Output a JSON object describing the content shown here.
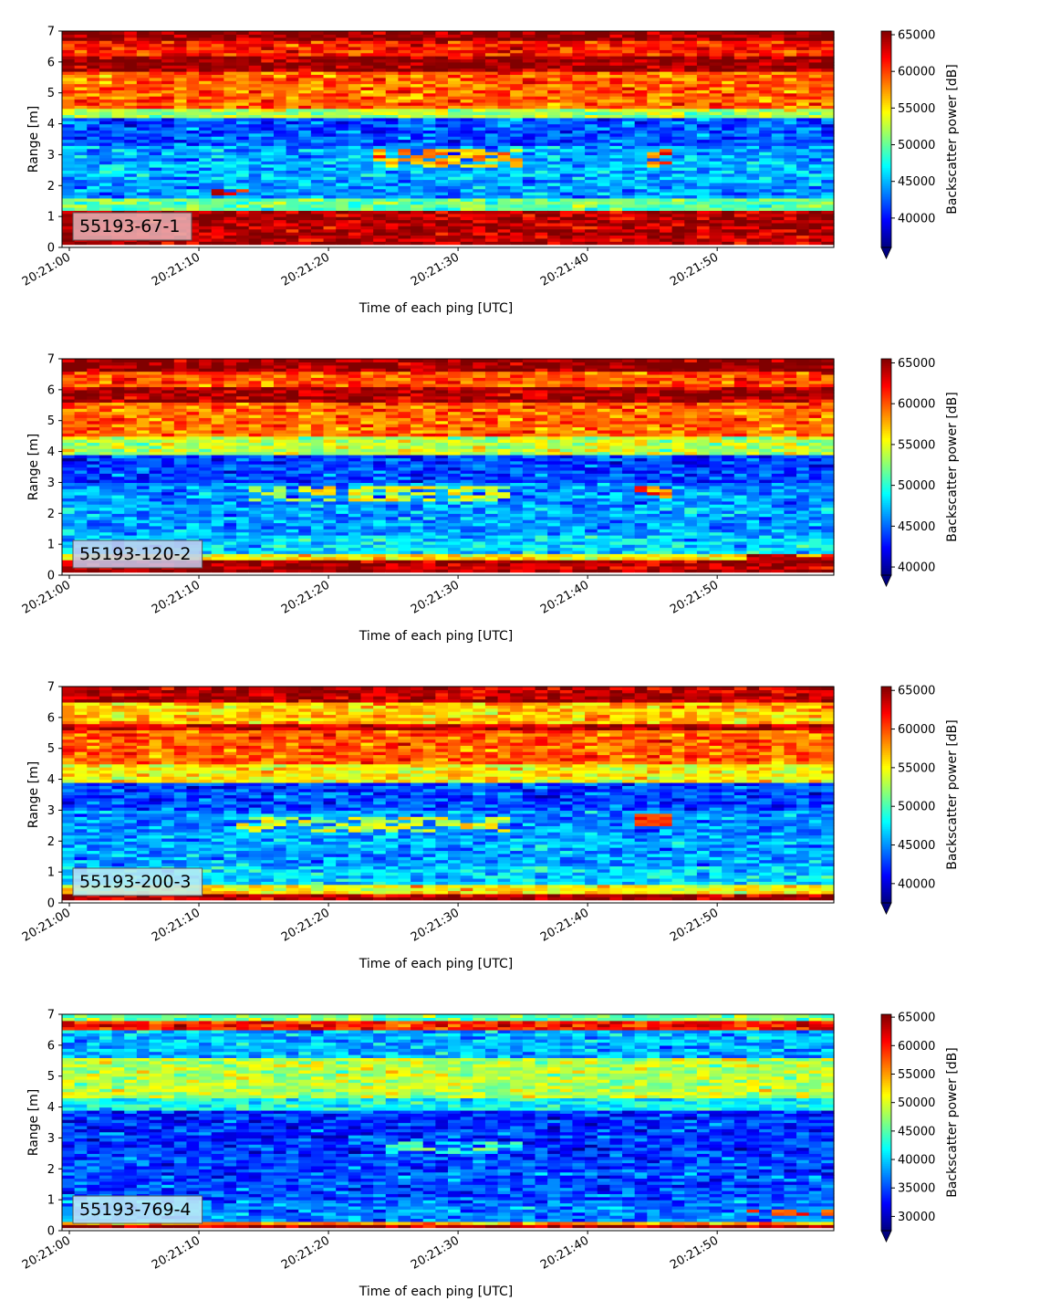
{
  "chart_data": [
    {
      "type": "heatmap",
      "panel_label": "55193-67-1",
      "panel_label_color": "#e8b4b8",
      "xlabel": "Time of each ping [UTC]",
      "ylabel": "Range [m]",
      "xtick_labels": [
        "20:21:00",
        "20:21:10",
        "20:21:20",
        "20:21:30",
        "20:21:40",
        "20:21:50"
      ],
      "yticks": [
        0,
        1,
        2,
        3,
        4,
        5,
        6,
        7
      ],
      "ylim": [
        0,
        7
      ],
      "xlim_seconds": [
        0,
        59
      ],
      "colormap": "jet",
      "colorbar": {
        "label": "Backscatter power [dB]",
        "range": [
          36000,
          65500
        ],
        "ticks": [
          40000,
          45000,
          50000,
          55000,
          60000,
          65000
        ],
        "extend": "min"
      },
      "profile": [
        {
          "range": [
            0.0,
            0.15
          ],
          "level": "white"
        },
        {
          "range": [
            0.15,
            1.2
          ],
          "level": 64000
        },
        {
          "range": [
            1.2,
            1.6
          ],
          "level": 50000
        },
        {
          "range": [
            1.6,
            2.2
          ],
          "level": 44000
        },
        {
          "range": [
            2.2,
            2.8
          ],
          "level": 45000
        },
        {
          "range": [
            2.8,
            3.3
          ],
          "level": 44500
        },
        {
          "range": [
            3.3,
            4.2
          ],
          "level": 42000
        },
        {
          "range": [
            4.2,
            4.5
          ],
          "level": 52000
        },
        {
          "range": [
            4.5,
            5.7
          ],
          "level": 59000
        },
        {
          "range": [
            5.7,
            6.2
          ],
          "level": 65000
        },
        {
          "range": [
            6.2,
            6.7
          ],
          "level": 61000
        },
        {
          "range": [
            6.7,
            7.0
          ],
          "level": 65000
        }
      ],
      "features": [
        {
          "t0": 11,
          "t1": 14,
          "r0": 1.7,
          "r1": 2.0,
          "level": 62000
        },
        {
          "t0": 24,
          "t1": 35,
          "r0": 2.6,
          "r1": 3.2,
          "level": 57000
        },
        {
          "t0": 44,
          "t1": 47,
          "r0": 2.6,
          "r1": 3.2,
          "level": 59000
        }
      ]
    },
    {
      "type": "heatmap",
      "panel_label": "55193-120-2",
      "panel_label_color": "#c9ccf0",
      "xlabel": "Time of each ping [UTC]",
      "ylabel": "Range [m]",
      "xtick_labels": [
        "20:21:00",
        "20:21:10",
        "20:21:20",
        "20:21:30",
        "20:21:40",
        "20:21:50"
      ],
      "yticks": [
        0,
        1,
        2,
        3,
        4,
        5,
        6,
        7
      ],
      "ylim": [
        0,
        7
      ],
      "xlim_seconds": [
        0,
        59
      ],
      "colormap": "jet",
      "colorbar": {
        "label": "Backscatter power [dB]",
        "range": [
          39000,
          65500
        ],
        "ticks": [
          40000,
          45000,
          50000,
          55000,
          60000,
          65000
        ],
        "extend": "min"
      },
      "profile": [
        {
          "range": [
            0.0,
            0.1
          ],
          "level": "white"
        },
        {
          "range": [
            0.1,
            0.45
          ],
          "level": 64500
        },
        {
          "range": [
            0.45,
            0.7
          ],
          "level": 56000
        },
        {
          "range": [
            0.7,
            1.3
          ],
          "level": 48000
        },
        {
          "range": [
            1.3,
            2.2
          ],
          "level": 46500
        },
        {
          "range": [
            2.2,
            3.0
          ],
          "level": 46000
        },
        {
          "range": [
            3.0,
            3.9
          ],
          "level": 44000
        },
        {
          "range": [
            3.9,
            4.5
          ],
          "level": 54000
        },
        {
          "range": [
            4.5,
            5.6
          ],
          "level": 59500
        },
        {
          "range": [
            5.6,
            6.1
          ],
          "level": 64500
        },
        {
          "range": [
            6.1,
            6.6
          ],
          "level": 60000
        },
        {
          "range": [
            6.6,
            7.0
          ],
          "level": 65000
        }
      ],
      "features": [
        {
          "t0": 14,
          "t1": 34,
          "r0": 2.4,
          "r1": 2.9,
          "level": 55000
        },
        {
          "t0": 44,
          "t1": 47,
          "r0": 2.5,
          "r1": 2.9,
          "level": 60000
        },
        {
          "t0": 52,
          "t1": 59,
          "r0": 0.45,
          "r1": 0.7,
          "level": 64500
        }
      ]
    },
    {
      "type": "heatmap",
      "panel_label": "55193-200-3",
      "panel_label_color": "#bfe7f5",
      "xlabel": "Time of each ping [UTC]",
      "ylabel": "Range [m]",
      "xtick_labels": [
        "20:21:00",
        "20:21:10",
        "20:21:20",
        "20:21:30",
        "20:21:40",
        "20:21:50"
      ],
      "yticks": [
        0,
        1,
        2,
        3,
        4,
        5,
        6,
        7
      ],
      "ylim": [
        0,
        7
      ],
      "xlim_seconds": [
        0,
        59
      ],
      "colormap": "jet",
      "colorbar": {
        "label": "Backscatter power [dB]",
        "range": [
          37500,
          65500
        ],
        "ticks": [
          40000,
          45000,
          50000,
          55000,
          60000,
          65000
        ],
        "extend": "min"
      },
      "profile": [
        {
          "range": [
            0.0,
            0.1
          ],
          "level": "white"
        },
        {
          "range": [
            0.1,
            0.35
          ],
          "level": 64500
        },
        {
          "range": [
            0.35,
            0.6
          ],
          "level": 55000
        },
        {
          "range": [
            0.6,
            1.2
          ],
          "level": 47000
        },
        {
          "range": [
            1.2,
            2.2
          ],
          "level": 45500
        },
        {
          "range": [
            2.2,
            3.0
          ],
          "level": 45000
        },
        {
          "range": [
            3.0,
            3.9
          ],
          "level": 43000
        },
        {
          "range": [
            3.9,
            4.5
          ],
          "level": 55000
        },
        {
          "range": [
            4.5,
            5.6
          ],
          "level": 59500
        },
        {
          "range": [
            5.6,
            5.8
          ],
          "level": 63500
        },
        {
          "range": [
            5.8,
            6.5
          ],
          "level": 56500
        },
        {
          "range": [
            6.5,
            7.0
          ],
          "level": 64000
        }
      ],
      "features": [
        {
          "t0": 13,
          "t1": 34,
          "r0": 2.3,
          "r1": 2.8,
          "level": 54000
        },
        {
          "t0": 44,
          "t1": 47,
          "r0": 2.5,
          "r1": 2.9,
          "level": 61000
        }
      ]
    },
    {
      "type": "heatmap",
      "panel_label": "55193-769-4",
      "panel_label_color": "#c6ecf7",
      "xlabel": "Time of each ping [UTC]",
      "ylabel": "Range [m]",
      "xtick_labels": [
        "20:21:00",
        "20:21:10",
        "20:21:20",
        "20:21:30",
        "20:21:40",
        "20:21:50"
      ],
      "yticks": [
        0,
        1,
        2,
        3,
        4,
        5,
        6,
        7
      ],
      "ylim": [
        0,
        7
      ],
      "xlim_seconds": [
        0,
        59
      ],
      "colormap": "jet",
      "colorbar": {
        "label": "Backscatter power [dB]",
        "range": [
          27500,
          65500
        ],
        "ticks": [
          30000,
          35000,
          40000,
          45000,
          50000,
          55000,
          60000,
          65000
        ],
        "extend": "min"
      },
      "profile": [
        {
          "range": [
            0.0,
            0.1
          ],
          "level": "white"
        },
        {
          "range": [
            0.1,
            0.2
          ],
          "level": 64000
        },
        {
          "range": [
            0.2,
            0.3
          ],
          "level": 55000
        },
        {
          "range": [
            0.3,
            1.0
          ],
          "level": 37000
        },
        {
          "range": [
            1.0,
            2.5
          ],
          "level": 35000
        },
        {
          "range": [
            2.5,
            3.9
          ],
          "level": 34000
        },
        {
          "range": [
            3.9,
            4.3
          ],
          "level": 42000
        },
        {
          "range": [
            4.3,
            5.6
          ],
          "level": 48500
        },
        {
          "range": [
            5.6,
            6.5
          ],
          "level": 39000
        },
        {
          "range": [
            6.5,
            6.8
          ],
          "level": 60000
        },
        {
          "range": [
            6.8,
            7.0
          ],
          "level": 46000
        }
      ],
      "features": [
        {
          "t0": 25,
          "t1": 35,
          "r0": 2.5,
          "r1": 2.9,
          "level": 43000
        },
        {
          "t0": 52,
          "t1": 59,
          "r0": 0.5,
          "r1": 0.7,
          "level": 58000
        }
      ]
    }
  ]
}
